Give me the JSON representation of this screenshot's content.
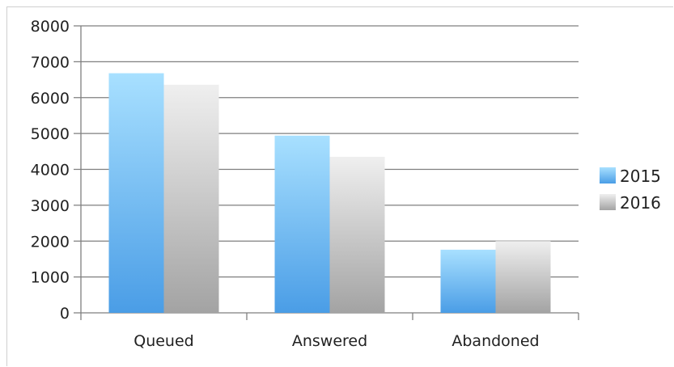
{
  "chart_data": {
    "type": "bar",
    "title": "",
    "xlabel": "",
    "ylabel": "",
    "categories": [
      "Queued",
      "Answered",
      "Abandoned"
    ],
    "series": [
      {
        "name": "2015",
        "values": [
          6680,
          4940,
          1760
        ]
      },
      {
        "name": "2016",
        "values": [
          6360,
          4350,
          2000
        ]
      }
    ],
    "ylim": [
      0,
      8000
    ],
    "yticks": [
      "0",
      "1000",
      "2000",
      "3000",
      "4000",
      "5000",
      "6000",
      "7000",
      "8000"
    ],
    "grid": true,
    "legend": "right",
    "colors": {
      "2015": [
        "#a8e0ff",
        "#4a9de6"
      ],
      "2016": [
        "#efefef",
        "#a3a3a3"
      ],
      "grid": "#7f7f7f"
    }
  }
}
